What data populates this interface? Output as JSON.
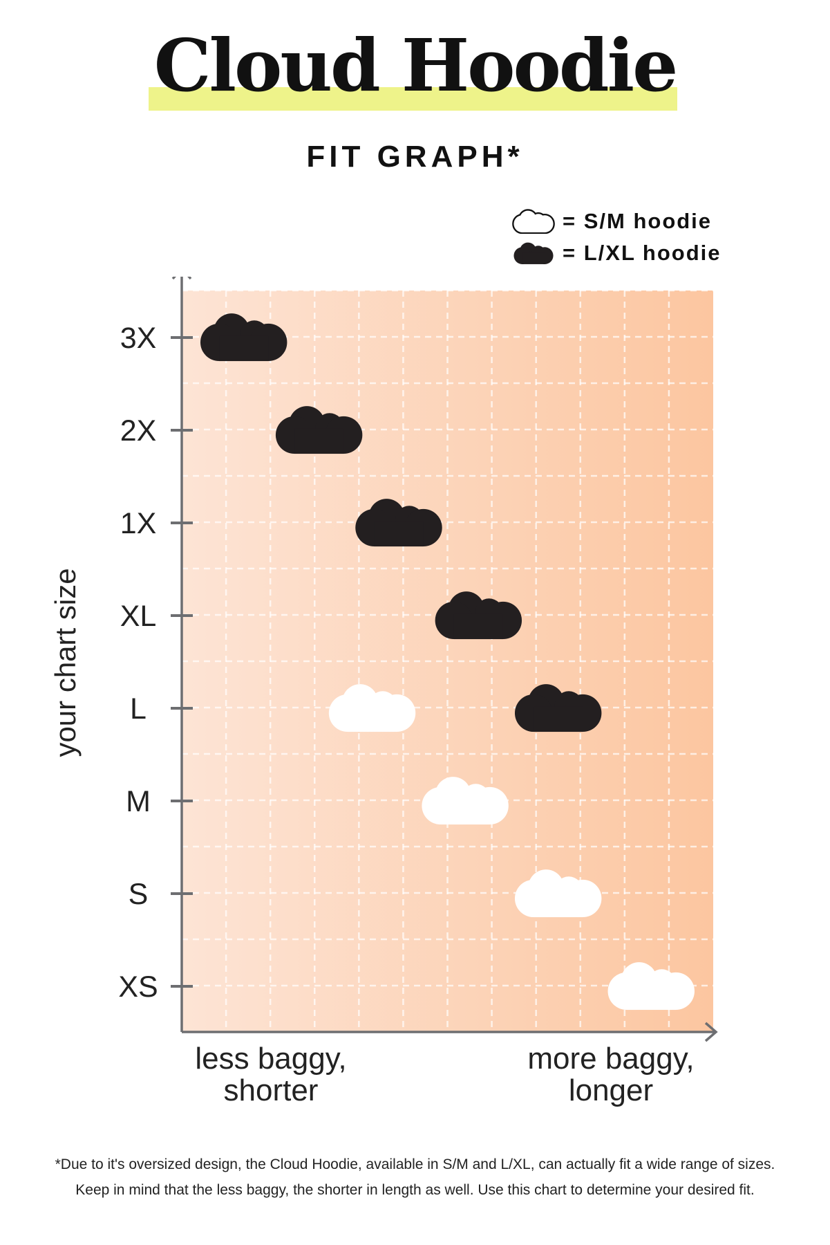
{
  "header": {
    "title": "Cloud Hoodie",
    "subtitle": "FIT GRAPH*"
  },
  "colors": {
    "highlight": "#eef38a",
    "gradient_start": "#fde4d5",
    "gradient_end": "#fcc6a0",
    "axis": "#6d6e71",
    "dark_cloud": "#231f20",
    "light_cloud": "#ffffff"
  },
  "legend": [
    {
      "icon": "cloud-outline-icon",
      "label": "= S/M hoodie"
    },
    {
      "icon": "cloud-filled-icon",
      "label": "= L/XL hoodie"
    }
  ],
  "chart_data": {
    "type": "scatter",
    "ylabel": "your chart size",
    "y_categories": [
      "XS",
      "S",
      "M",
      "L",
      "XL",
      "1X",
      "2X",
      "3X"
    ],
    "x_low_label": "less baggy, shorter",
    "x_high_label": "more baggy, longer",
    "xlim": [
      0,
      12
    ],
    "grid": true,
    "legend_position": "top-right",
    "series": [
      {
        "name": "S/M hoodie",
        "marker": "white cloud",
        "points": [
          {
            "y": "L",
            "x": 4.3
          },
          {
            "y": "M",
            "x": 6.4
          },
          {
            "y": "S",
            "x": 8.5
          },
          {
            "y": "XS",
            "x": 10.6
          }
        ]
      },
      {
        "name": "L/XL hoodie",
        "marker": "black cloud",
        "points": [
          {
            "y": "3X",
            "x": 1.4
          },
          {
            "y": "2X",
            "x": 3.1
          },
          {
            "y": "1X",
            "x": 4.9
          },
          {
            "y": "XL",
            "x": 6.7
          },
          {
            "y": "L",
            "x": 8.5
          }
        ]
      }
    ]
  },
  "axis_labels": {
    "low_line1": "less baggy,",
    "low_line2": "shorter",
    "high_line1": "more baggy,",
    "high_line2": "longer"
  },
  "footnote": {
    "line1": "*Due to it's oversized design, the Cloud Hoodie, available in S/M and L/XL, can actually fit a wide range of sizes.",
    "line2": "Keep in mind that the less baggy, the shorter in length as well. Use this chart to determine your desired fit."
  }
}
